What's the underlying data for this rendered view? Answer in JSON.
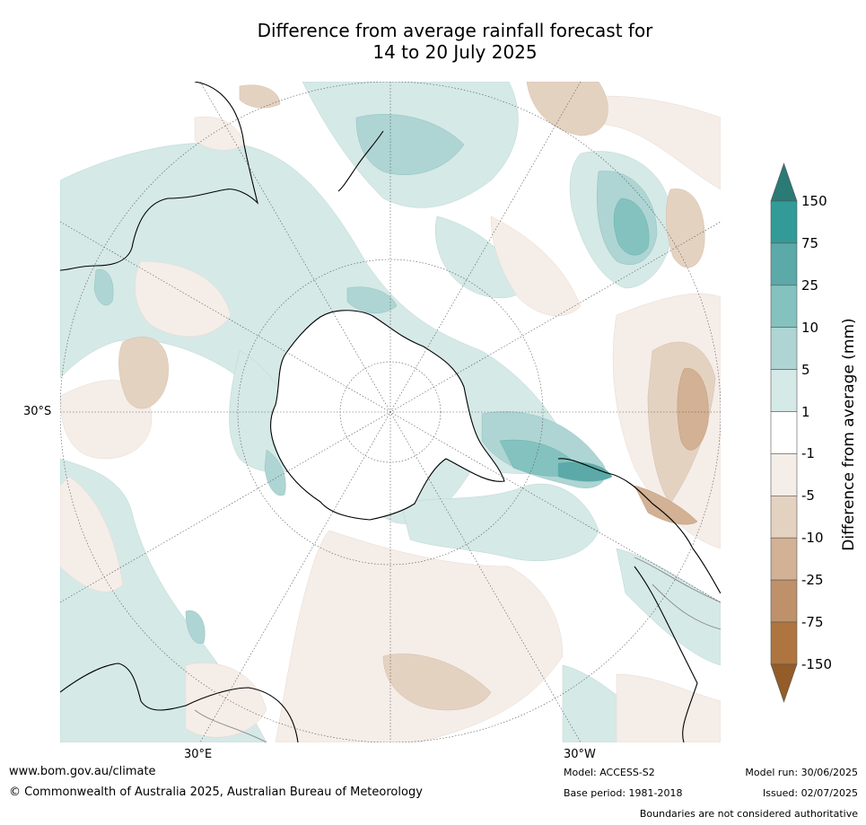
{
  "title": {
    "line1": "Difference from average rainfall forecast for",
    "line2": "14 to 20 July 2025"
  },
  "map_labels": {
    "lat_left": "30°S",
    "lon_bottom_left": "30°E",
    "lon_bottom_right": "30°W"
  },
  "colorbar": {
    "title": "Difference from average (mm)",
    "ticks": [
      "150",
      "75",
      "25",
      "10",
      "5",
      "1",
      "-1",
      "-5",
      "-10",
      "-25",
      "-75",
      "-150"
    ],
    "colors": {
      "above_150": "#2a7a76",
      "75_150": "#329b98",
      "25_75": "#5ba9a8",
      "10_25": "#84c2bf",
      "5_10": "#aed5d3",
      "1_5": "#d5e9e7",
      "neutral": "#ffffff",
      "m1_m5": "#f5ede8",
      "m5_m10": "#e4d2c1",
      "m10_m25": "#d2b194",
      "m25_m75": "#bf916b",
      "m75_m150": "#ae7540",
      "below_m150": "#935c28"
    }
  },
  "footer": {
    "website": "www.bom.gov.au/climate",
    "copyright": "© Commonwealth of Australia 2025, Australian Bureau of Meteorology",
    "model": "Model: ACCESS-S2",
    "base_period": "Base period: 1981-2018",
    "model_run": "Model run: 30/06/2025",
    "issued": "Issued: 02/07/2025",
    "disclaimer": "Boundaries are not considered authoritative"
  }
}
